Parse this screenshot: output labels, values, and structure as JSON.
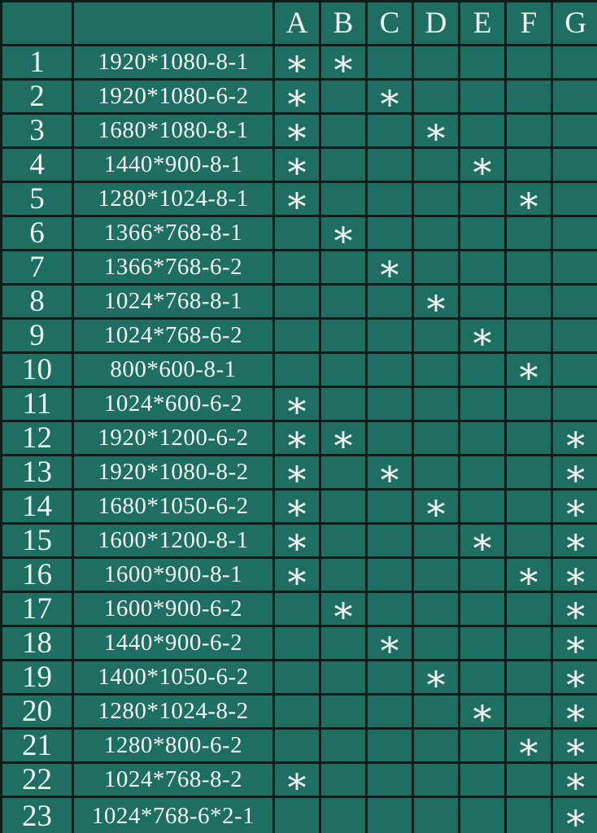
{
  "colors": {
    "background": "#1e6e61",
    "grid_line": "#081f1a",
    "text": "#f2f6f2"
  },
  "chart_data": {
    "type": "table",
    "columns": [
      "",
      "",
      "A",
      "B",
      "C",
      "D",
      "E",
      "F",
      "G"
    ],
    "mark_glyph": "*",
    "rows": [
      {
        "index": "1",
        "label": "1920*1080-8-1",
        "cells": [
          "*",
          "*",
          "",
          "",
          "",
          "",
          ""
        ]
      },
      {
        "index": "2",
        "label": "1920*1080-6-2",
        "cells": [
          "*",
          "",
          "*",
          "",
          "",
          "",
          ""
        ]
      },
      {
        "index": "3",
        "label": "1680*1080-8-1",
        "cells": [
          "*",
          "",
          "",
          "*",
          "",
          "",
          ""
        ]
      },
      {
        "index": "4",
        "label": "1440*900-8-1",
        "cells": [
          "*",
          "",
          "",
          "",
          "*",
          "",
          ""
        ]
      },
      {
        "index": "5",
        "label": "1280*1024-8-1",
        "cells": [
          "*",
          "",
          "",
          "",
          "",
          "*",
          ""
        ]
      },
      {
        "index": "6",
        "label": "1366*768-8-1",
        "cells": [
          "",
          "*",
          "",
          "",
          "",
          "",
          ""
        ]
      },
      {
        "index": "7",
        "label": "1366*768-6-2",
        "cells": [
          "",
          "",
          "*",
          "",
          "",
          "",
          ""
        ]
      },
      {
        "index": "8",
        "label": "1024*768-8-1",
        "cells": [
          "",
          "",
          "",
          "*",
          "",
          "",
          ""
        ]
      },
      {
        "index": "9",
        "label": "1024*768-6-2",
        "cells": [
          "",
          "",
          "",
          "",
          "*",
          "",
          ""
        ]
      },
      {
        "index": "10",
        "label": "800*600-8-1",
        "cells": [
          "",
          "",
          "",
          "",
          "",
          "*",
          ""
        ]
      },
      {
        "index": "11",
        "label": "1024*600-6-2",
        "cells": [
          "*",
          "",
          "",
          "",
          "",
          "",
          ""
        ]
      },
      {
        "index": "12",
        "label": "1920*1200-6-2",
        "cells": [
          "*",
          "*",
          "",
          "",
          "",
          "",
          "*"
        ]
      },
      {
        "index": "13",
        "label": "1920*1080-8-2",
        "cells": [
          "*",
          "",
          "*",
          "",
          "",
          "",
          "*"
        ]
      },
      {
        "index": "14",
        "label": "1680*1050-6-2",
        "cells": [
          "*",
          "",
          "",
          "*",
          "",
          "",
          "*"
        ]
      },
      {
        "index": "15",
        "label": "1600*1200-8-1",
        "cells": [
          "*",
          "",
          "",
          "",
          "*",
          "",
          "*"
        ]
      },
      {
        "index": "16",
        "label": "1600*900-8-1",
        "cells": [
          "*",
          "",
          "",
          "",
          "",
          "*",
          "*"
        ]
      },
      {
        "index": "17",
        "label": "1600*900-6-2",
        "cells": [
          "",
          "*",
          "",
          "",
          "",
          "",
          "*"
        ]
      },
      {
        "index": "18",
        "label": "1440*900-6-2",
        "cells": [
          "",
          "",
          "*",
          "",
          "",
          "",
          "*"
        ]
      },
      {
        "index": "19",
        "label": "1400*1050-6-2",
        "cells": [
          "",
          "",
          "",
          "*",
          "",
          "",
          "*"
        ]
      },
      {
        "index": "20",
        "label": "1280*1024-8-2",
        "cells": [
          "",
          "",
          "",
          "",
          "*",
          "",
          "*"
        ]
      },
      {
        "index": "21",
        "label": "1280*800-6-2",
        "cells": [
          "",
          "",
          "",
          "",
          "",
          "*",
          "*"
        ]
      },
      {
        "index": "22",
        "label": "1024*768-8-2",
        "cells": [
          "*",
          "",
          "",
          "",
          "",
          "",
          "*"
        ]
      },
      {
        "index": "23",
        "label": "1024*768-6*2-1",
        "cells": [
          "",
          "",
          "",
          "",
          "",
          "",
          "*"
        ]
      }
    ]
  }
}
